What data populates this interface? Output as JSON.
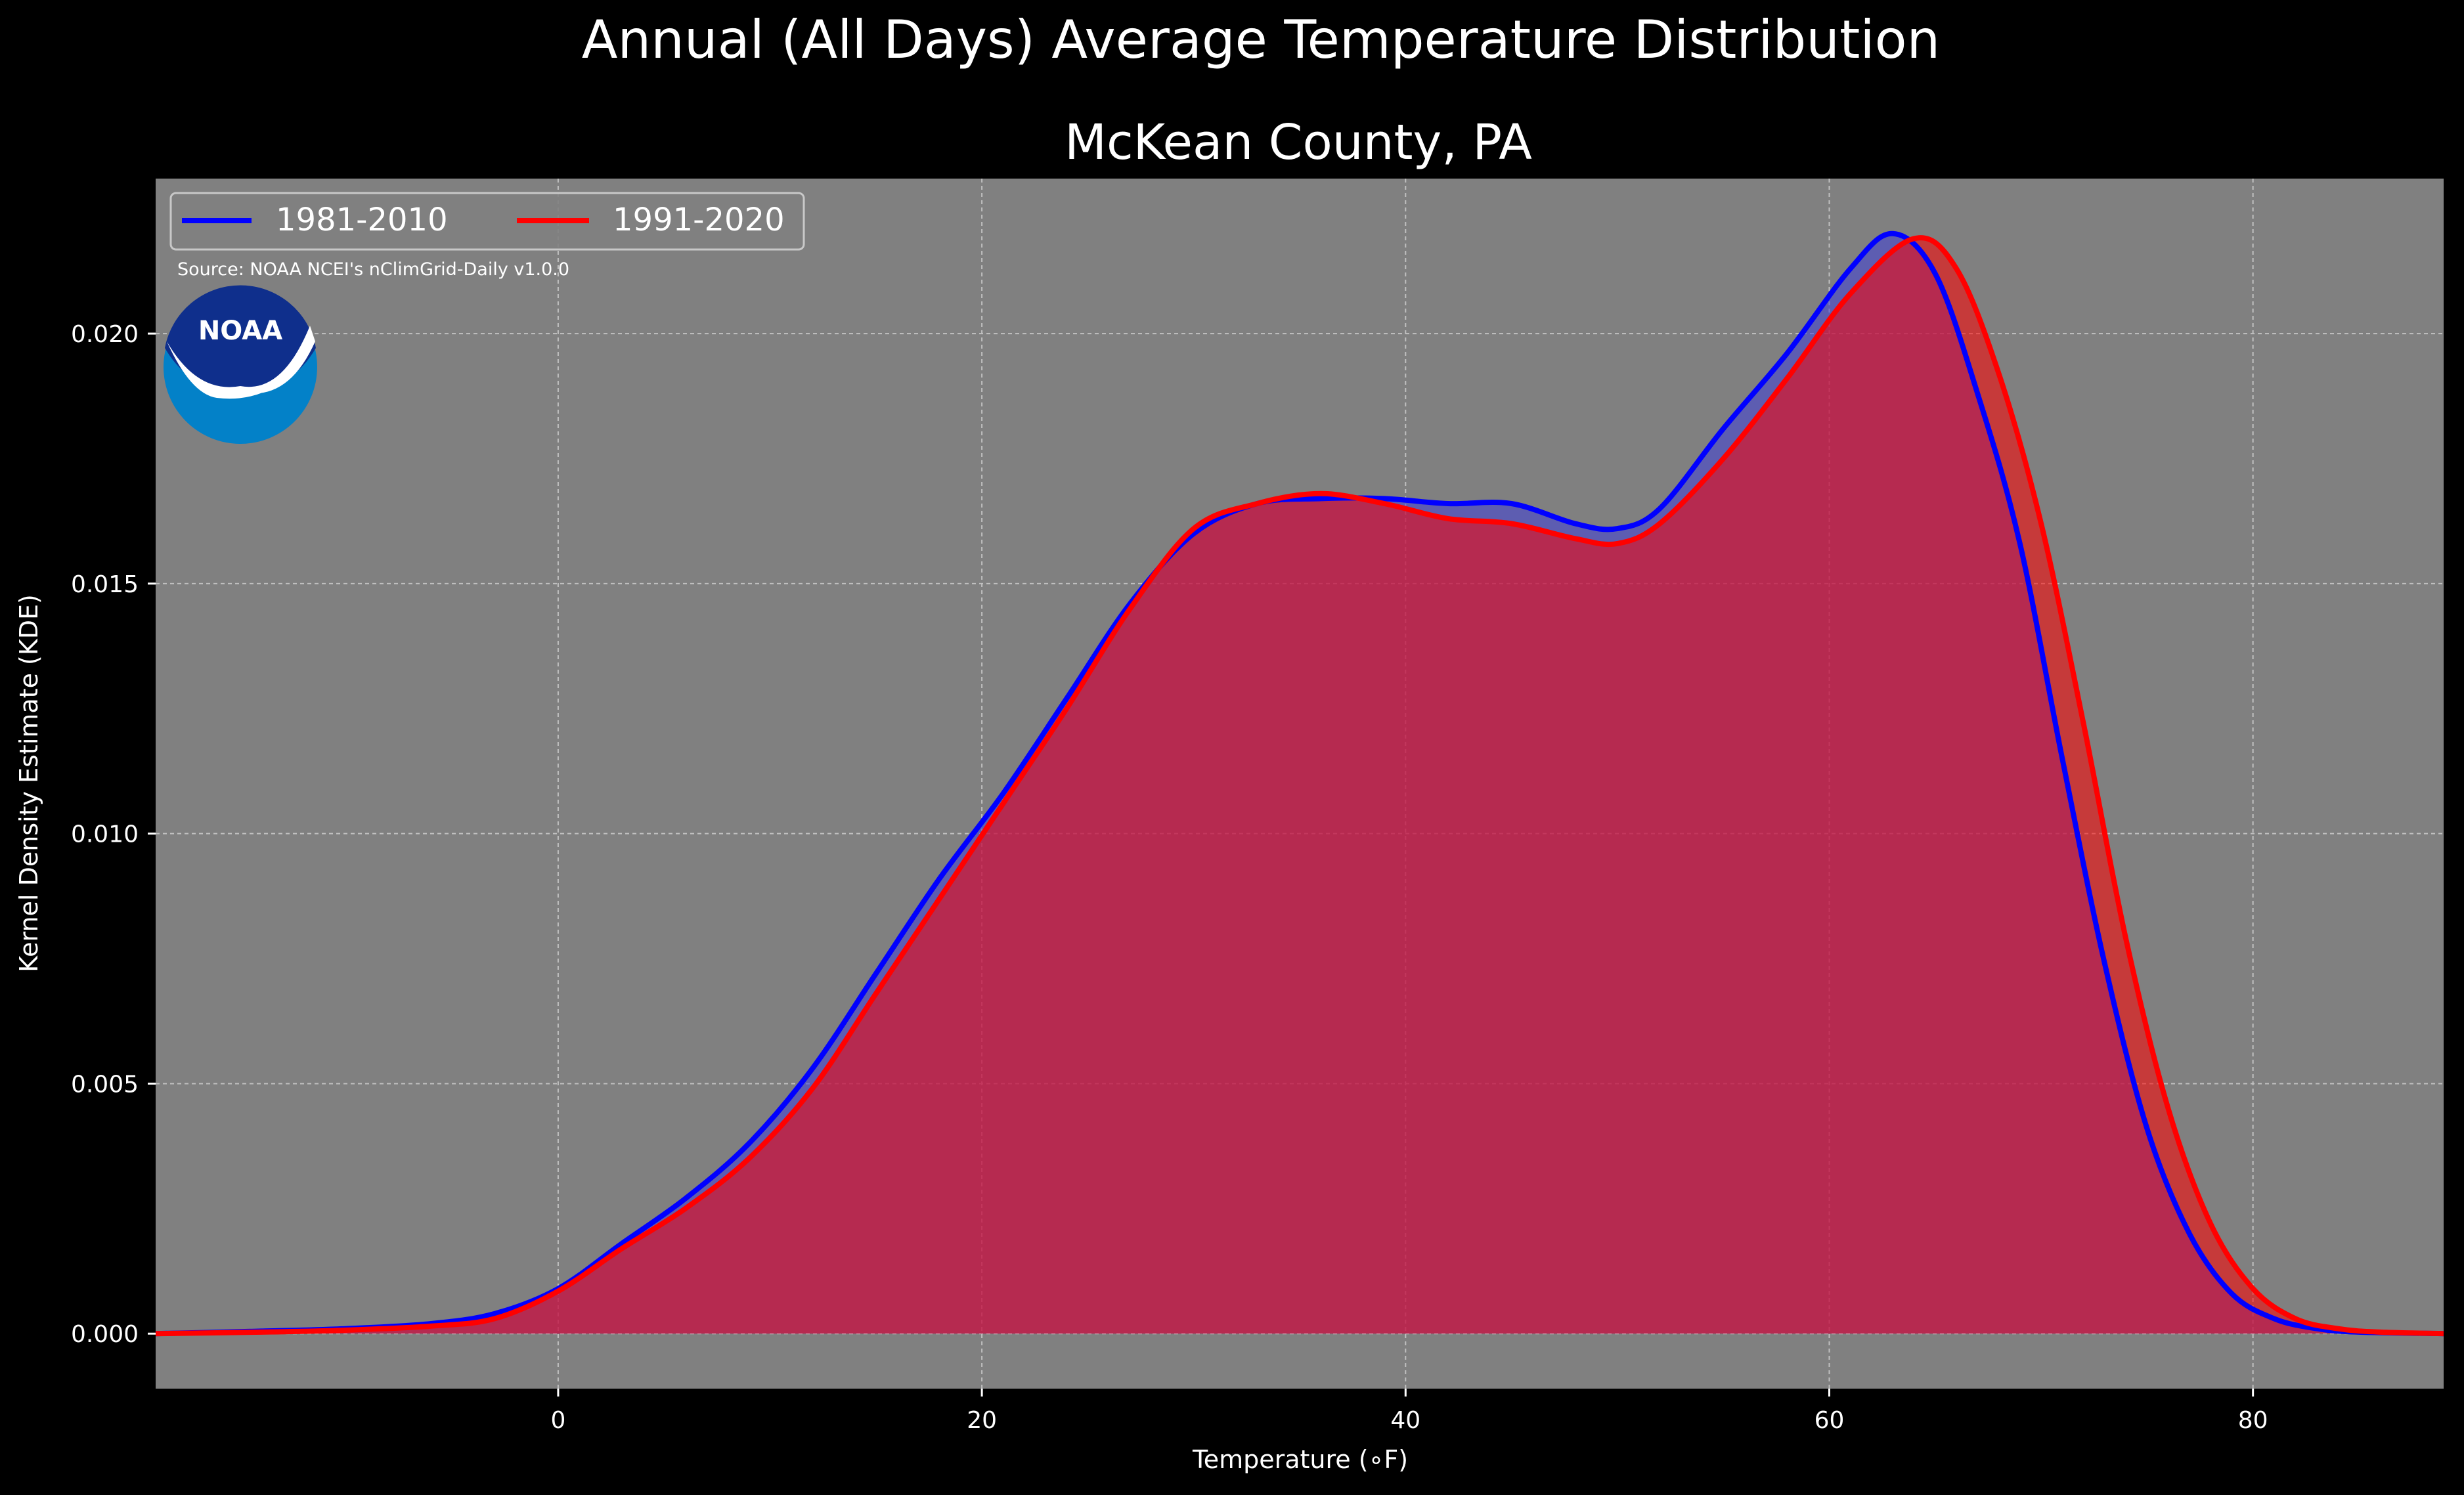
{
  "figure": {
    "suptitle": "Annual (All Days) Average Temperature Distribution",
    "logo_text": "NOAA"
  },
  "chart_data": {
    "type": "area",
    "title": "McKean County, PA",
    "xlabel": "Temperature (∘F)",
    "ylabel": "Kernel Density Estimate (KDE)",
    "source_note": "Source: NOAA NCEI's nClimGrid-Daily v1.0.0",
    "xlim": [
      -19,
      89
    ],
    "ylim": [
      -0.0011,
      0.0231
    ],
    "xticks": [
      0,
      20,
      40,
      60,
      80
    ],
    "yticks": [
      0.0,
      0.005,
      0.01,
      0.015,
      0.02
    ],
    "ytick_labels": [
      "0.000",
      "0.005",
      "0.010",
      "0.015",
      "0.020"
    ],
    "grid": true,
    "legend_position": "top-left",
    "background_color": "#808080",
    "series": [
      {
        "name": "1981-2010",
        "color": "#0000ff",
        "fill_color": "#3f3fd8",
        "x": [
          -19,
          -14,
          -10,
          -6,
          -3,
          0,
          3,
          6,
          9,
          12,
          15,
          18,
          21,
          24,
          27,
          30,
          33,
          36,
          39,
          42,
          45,
          48,
          50,
          52,
          55,
          58,
          61,
          63,
          65,
          67,
          69,
          71,
          73,
          75,
          77,
          79,
          81,
          83,
          85,
          89
        ],
        "y": [
          0.0,
          5e-05,
          0.0001,
          0.0002,
          0.0004,
          0.0009,
          0.0018,
          0.0027,
          0.0038,
          0.0053,
          0.0072,
          0.0091,
          0.0108,
          0.0127,
          0.0146,
          0.016,
          0.0166,
          0.0167,
          0.0167,
          0.0166,
          0.0166,
          0.0162,
          0.0161,
          0.0165,
          0.0181,
          0.0196,
          0.0213,
          0.022,
          0.0212,
          0.0188,
          0.0158,
          0.0115,
          0.0074,
          0.0041,
          0.002,
          0.0008,
          0.0003,
          0.0001,
          3e-05,
          0.0
        ]
      },
      {
        "name": "1991-2020",
        "color": "#ff0000",
        "fill_color": "#ff0000",
        "x": [
          -19,
          -14,
          -10,
          -6,
          -3,
          0,
          3,
          6,
          9,
          12,
          15,
          18,
          21,
          24,
          27,
          30,
          33,
          36,
          39,
          42,
          45,
          48,
          50,
          52,
          55,
          58,
          61,
          64,
          66,
          68,
          70,
          72,
          74,
          76,
          78,
          80,
          82,
          84,
          86,
          89
        ],
        "y": [
          0.0,
          3e-05,
          7e-05,
          0.00015,
          0.0003,
          0.00085,
          0.0017,
          0.0025,
          0.0035,
          0.0049,
          0.0068,
          0.0087,
          0.0106,
          0.0125,
          0.0145,
          0.0161,
          0.0166,
          0.0168,
          0.0166,
          0.0163,
          0.0162,
          0.0159,
          0.0158,
          0.0162,
          0.0175,
          0.0191,
          0.0208,
          0.0219,
          0.0213,
          0.0192,
          0.0162,
          0.0122,
          0.0079,
          0.0045,
          0.0022,
          0.0009,
          0.0003,
          0.0001,
          3e-05,
          0.0
        ]
      }
    ]
  }
}
